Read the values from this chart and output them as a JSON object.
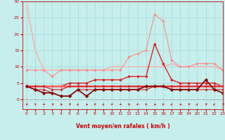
{
  "xlabel": "Vent moyen/en rafales ( km/h )",
  "ylabel": "",
  "xlim": [
    -0.5,
    23
  ],
  "ylim": [
    -3,
    30
  ],
  "yticks": [
    0,
    5,
    10,
    15,
    20,
    25,
    30
  ],
  "xticks": [
    0,
    1,
    2,
    3,
    4,
    5,
    6,
    7,
    8,
    9,
    10,
    11,
    12,
    13,
    14,
    15,
    16,
    17,
    18,
    19,
    20,
    21,
    22,
    23
  ],
  "bg_color": "#c5eeed",
  "grid_color": "#a8d8d8",
  "series": [
    {
      "x": [
        0,
        1,
        2,
        3,
        4,
        5,
        6,
        7,
        8,
        9,
        10,
        11,
        12,
        13,
        14,
        15,
        16,
        17,
        18,
        19,
        20,
        21,
        22,
        23
      ],
      "y": [
        29,
        15,
        9,
        9,
        9,
        9,
        9,
        9,
        9,
        9,
        10,
        10,
        10,
        10,
        10,
        10,
        10,
        11,
        10,
        10,
        10,
        10,
        10,
        9
      ],
      "color": "#ffaaaa",
      "lw": 1.0,
      "marker": null
    },
    {
      "x": [
        0,
        1,
        2,
        3,
        4,
        5,
        6,
        7,
        8,
        9,
        10,
        11,
        12,
        13,
        14,
        15,
        16,
        17,
        18,
        19,
        20,
        21,
        22,
        23
      ],
      "y": [
        9,
        9,
        9,
        7,
        9,
        9,
        9,
        9,
        9,
        9,
        9,
        9,
        13,
        14,
        15,
        26,
        24,
        12,
        10,
        10,
        11,
        11,
        11,
        9
      ],
      "color": "#ff8888",
      "lw": 0.8,
      "marker": "D",
      "markersize": 1.8
    },
    {
      "x": [
        0,
        1,
        2,
        3,
        4,
        5,
        6,
        7,
        8,
        9,
        10,
        11,
        12,
        13,
        14,
        15,
        16,
        17,
        18,
        19,
        20,
        21,
        22,
        23
      ],
      "y": [
        4,
        4,
        4,
        4,
        4,
        5,
        5,
        5,
        6,
        6,
        6,
        6,
        7,
        7,
        7,
        17,
        11,
        6,
        5,
        5,
        5,
        5,
        5,
        4
      ],
      "color": "#dd2222",
      "lw": 1.0,
      "marker": "D",
      "markersize": 2.0
    },
    {
      "x": [
        0,
        1,
        2,
        3,
        4,
        5,
        6,
        7,
        8,
        9,
        10,
        11,
        12,
        13,
        14,
        15,
        16,
        17,
        18,
        19,
        20,
        21,
        22,
        23
      ],
      "y": [
        4,
        4,
        4,
        4,
        4,
        4,
        4,
        4,
        4,
        4,
        4,
        4,
        4,
        4,
        4,
        4,
        4,
        4,
        4,
        4,
        4,
        4,
        4,
        4
      ],
      "color": "#ff6666",
      "lw": 2.0,
      "marker": null
    },
    {
      "x": [
        0,
        1,
        2,
        3,
        4,
        5,
        6,
        7,
        8,
        9,
        10,
        11,
        12,
        13,
        14,
        15,
        16,
        17,
        18,
        19,
        20,
        21,
        22,
        23
      ],
      "y": [
        4,
        4,
        4,
        3,
        3,
        4,
        4,
        4,
        4,
        4,
        4,
        4,
        4,
        4,
        4,
        4,
        4,
        4,
        4,
        4,
        4,
        4,
        4,
        4
      ],
      "color": "#cc2222",
      "lw": 0.8,
      "marker": "D",
      "markersize": 1.8
    },
    {
      "x": [
        0,
        1,
        2,
        3,
        4,
        5,
        6,
        7,
        8,
        9,
        10,
        11,
        12,
        13,
        14,
        15,
        16,
        17,
        18,
        19,
        20,
        21,
        22,
        23
      ],
      "y": [
        4,
        3,
        3,
        2,
        1,
        1,
        3,
        3,
        3,
        3,
        3,
        3,
        3,
        3,
        3,
        4,
        4,
        3,
        3,
        3,
        3,
        3,
        3,
        3
      ],
      "color": "#cc2222",
      "lw": 0.8,
      "marker": "D",
      "markersize": 1.8
    },
    {
      "x": [
        0,
        1,
        2,
        3,
        4,
        5,
        6,
        7,
        8,
        9,
        10,
        11,
        12,
        13,
        14,
        15,
        16,
        17,
        18,
        19,
        20,
        21,
        22,
        23
      ],
      "y": [
        4,
        3,
        2,
        2,
        1,
        1,
        3,
        1,
        3,
        3,
        3,
        3,
        3,
        3,
        4,
        4,
        4,
        3,
        3,
        3,
        3,
        6,
        3,
        2
      ],
      "color": "#880000",
      "lw": 1.2,
      "marker": "D",
      "markersize": 2.5
    }
  ],
  "wind_angles": [
    200,
    30,
    150,
    50,
    130,
    50,
    10,
    130,
    200,
    10,
    200,
    150,
    340,
    200,
    340,
    130,
    200,
    10,
    130,
    50,
    10,
    50,
    10,
    50
  ]
}
